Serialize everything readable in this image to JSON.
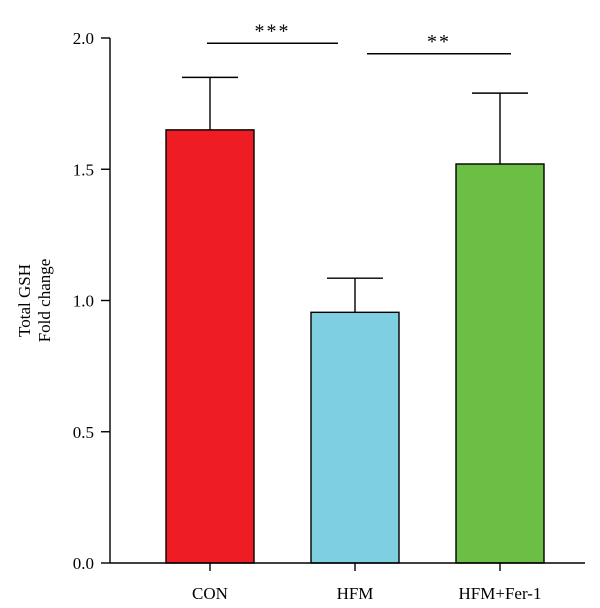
{
  "chart_data": {
    "type": "bar",
    "categories": [
      "CON",
      "HFM",
      "HFM+Fer-1"
    ],
    "values": [
      1.65,
      0.955,
      1.52
    ],
    "errors": [
      0.2,
      0.13,
      0.27
    ],
    "colors": [
      "#ee1d23",
      "#7ed0e0",
      "#6cbf45"
    ],
    "ylabel_lines": [
      "Total GSH",
      "Fold change"
    ],
    "xlabel": "",
    "ylim": [
      0,
      2.0
    ],
    "yticks": [
      0.0,
      0.5,
      1.0,
      1.5,
      2.0
    ],
    "ytick_labels": [
      "0.0",
      "0.5",
      "1.0",
      "1.5",
      "2.0"
    ],
    "grid": false,
    "significance": [
      {
        "from": 0,
        "to": 1,
        "label": "***",
        "y": 1.98
      },
      {
        "from": 1,
        "to": 2,
        "label": "**",
        "y": 1.94
      }
    ]
  }
}
